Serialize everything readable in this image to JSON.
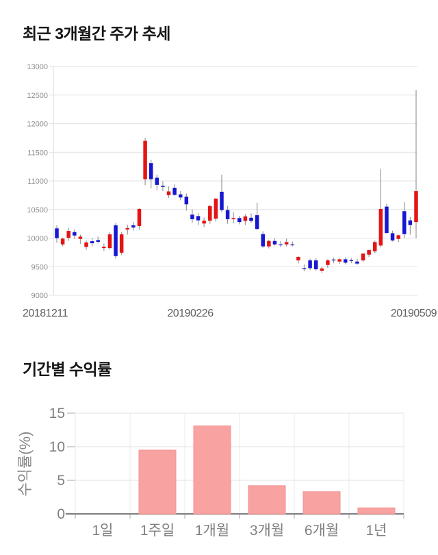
{
  "page": {
    "background": "#ffffff"
  },
  "chart_data": [
    {
      "type": "candlestick",
      "title": "최근 3개월간 주가 추세",
      "ylim": [
        9000,
        13000
      ],
      "y_ticks": [
        13000,
        12500,
        12000,
        11500,
        11000,
        10500,
        10000,
        9500,
        9000
      ],
      "x_labels": [
        "20181211",
        "20190226",
        "20190509"
      ],
      "grid": "on",
      "colors": {
        "up": "#e51414",
        "down": "#1717d2",
        "wick": "#999999",
        "grid": "#e2e2e2",
        "axis_line": "#d8d8d8",
        "tick_text": "#8c8c8c",
        "date_text": "#606060"
      },
      "candles_format": "open,high,low,close",
      "candles": [
        [
          10170,
          10225,
          9920,
          10000
        ],
        [
          9890,
          10010,
          9855,
          9990
        ],
        [
          10005,
          10180,
          9950,
          10125
        ],
        [
          10105,
          10155,
          9985,
          10045
        ],
        [
          9985,
          10060,
          9900,
          10025
        ],
        [
          9845,
          9960,
          9795,
          9925
        ],
        [
          9945,
          10005,
          9855,
          9910
        ],
        [
          9965,
          10025,
          9905,
          9935
        ],
        [
          9825,
          9905,
          9775,
          9850
        ],
        [
          9825,
          10105,
          9800,
          10065
        ],
        [
          10225,
          10265,
          9640,
          9685
        ],
        [
          9745,
          10105,
          9700,
          10065
        ],
        [
          10150,
          10235,
          10060,
          10175
        ],
        [
          10225,
          10285,
          10130,
          10185
        ],
        [
          10210,
          10520,
          10150,
          10510
        ],
        [
          11030,
          11750,
          10925,
          11700
        ],
        [
          11310,
          11370,
          10870,
          11030
        ],
        [
          11055,
          11110,
          10840,
          10930
        ],
        [
          10915,
          10995,
          10820,
          10895
        ],
        [
          10750,
          10905,
          10700,
          10815
        ],
        [
          10880,
          10940,
          10745,
          10755
        ],
        [
          10765,
          10820,
          10660,
          10710
        ],
        [
          10725,
          10780,
          10480,
          10590
        ],
        [
          10410,
          10500,
          10270,
          10330
        ],
        [
          10385,
          10440,
          10230,
          10310
        ],
        [
          10255,
          10360,
          10190,
          10305
        ],
        [
          10305,
          10580,
          10250,
          10560
        ],
        [
          10340,
          10700,
          10290,
          10690
        ],
        [
          10810,
          11110,
          10450,
          10490
        ],
        [
          10490,
          10560,
          10250,
          10330
        ],
        [
          10330,
          10450,
          10260,
          10350
        ],
        [
          10350,
          10390,
          10240,
          10280
        ],
        [
          10300,
          10420,
          10230,
          10380
        ],
        [
          10355,
          10430,
          10270,
          10300
        ],
        [
          10400,
          10620,
          10140,
          10160
        ],
        [
          10070,
          10120,
          9830,
          9855
        ],
        [
          9855,
          9970,
          9820,
          9950
        ],
        [
          9950,
          9995,
          9870,
          9890
        ],
        [
          9890,
          9945,
          9845,
          9885
        ],
        [
          9890,
          9990,
          9855,
          9930
        ],
        [
          9890,
          9940,
          9855,
          9885
        ],
        [
          9610,
          9690,
          9555,
          9670
        ],
        [
          9475,
          9540,
          9420,
          9470
        ],
        [
          9610,
          9640,
          9440,
          9475
        ],
        [
          9610,
          9650,
          9430,
          9455
        ],
        [
          9430,
          9500,
          9395,
          9470
        ],
        [
          9530,
          9630,
          9480,
          9610
        ],
        [
          9625,
          9660,
          9560,
          9615
        ],
        [
          9590,
          9650,
          9550,
          9630
        ],
        [
          9630,
          9665,
          9540,
          9570
        ],
        [
          9615,
          9650,
          9560,
          9605
        ],
        [
          9590,
          9640,
          9530,
          9555
        ],
        [
          9610,
          9740,
          9580,
          9730
        ],
        [
          9710,
          9800,
          9670,
          9790
        ],
        [
          9770,
          9960,
          9740,
          9930
        ],
        [
          9870,
          11210,
          9840,
          10510
        ],
        [
          10550,
          10600,
          10080,
          10090
        ],
        [
          10085,
          10130,
          9940,
          9960
        ],
        [
          9985,
          10060,
          9930,
          10050
        ],
        [
          10470,
          10630,
          10000,
          10070
        ],
        [
          10310,
          10370,
          10060,
          10230
        ],
        [
          10280,
          12590,
          10000,
          10820
        ]
      ]
    },
    {
      "type": "bar",
      "title": "기간별 수익률",
      "ylabel": "수익률(%)",
      "ylim": [
        0,
        15
      ],
      "y_ticks": [
        0,
        5,
        10,
        15
      ],
      "categories": [
        "1일",
        "1주일",
        "1개월",
        "3개월",
        "6개월",
        "1년"
      ],
      "values": [
        0,
        9.5,
        13.1,
        4.2,
        3.3,
        0.9
      ],
      "grid": "on",
      "colors": {
        "bar": "#f9a2a2",
        "bar_border": "#f29191",
        "grid": "#e0e0e0",
        "vgrid": "#e8e8e8",
        "zero_axis": "#7d7d7d",
        "tick_stub": "#aaaaaa",
        "text": "#808080"
      }
    }
  ]
}
